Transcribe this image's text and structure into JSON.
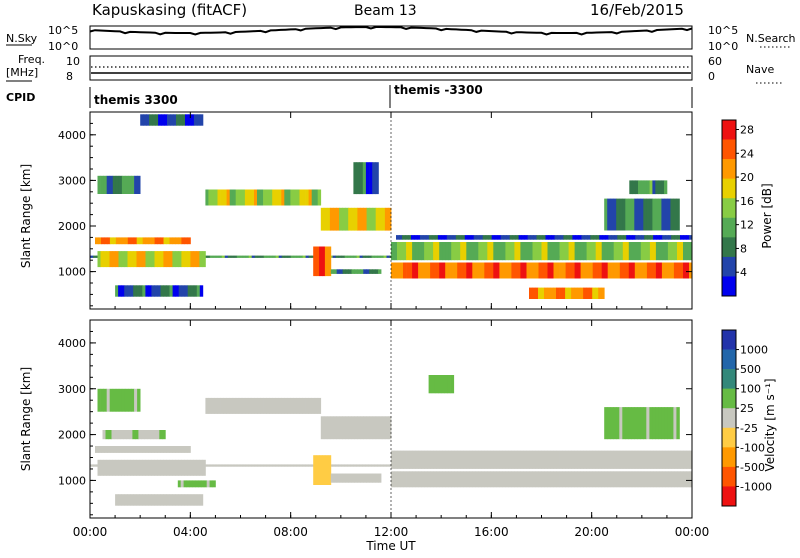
{
  "header": {
    "station": "Kapuskasing (fitACF)",
    "beam": "Beam 13",
    "date": "16/Feb/2015"
  },
  "top_panels": {
    "nsky_label": "N.Sky",
    "nsearch_label": "N.Search",
    "nsky_ticks": [
      "10^5",
      "10^0"
    ],
    "nsearch_ticks": [
      "10^5",
      "10^0"
    ],
    "freq_label": "Freq.",
    "freq_unit": "[MHz]",
    "freq_ticks": [
      "10",
      "8"
    ],
    "nave_label": "Nave",
    "nave_ticks": [
      "60",
      "0"
    ],
    "cpid_label": "CPID",
    "cpid_segments": [
      "themis 3300",
      "themis -3300"
    ]
  },
  "chart_data": [
    {
      "type": "heatmap",
      "name": "power",
      "ylabel": "Slant Range [km]",
      "xlabel": "",
      "xlim": [
        0,
        24
      ],
      "ylim": [
        180,
        4500
      ],
      "y_ticks": [
        "1000",
        "2000",
        "3000",
        "4000"
      ],
      "x_ticks": [
        "00:00",
        "04:00",
        "08:00",
        "12:00",
        "16:00",
        "20:00",
        "00:00"
      ],
      "colorbar_label": "Power [dB]",
      "colorbar_ticks": [
        "4",
        "8",
        "12",
        "16",
        "20",
        "24",
        "28"
      ],
      "colorbar_range": [
        0,
        30
      ],
      "colors": [
        "#0000ee",
        "#2244aa",
        "#33774a",
        "#55aa55",
        "#88cc44",
        "#e8d000",
        "#ff9900",
        "#ff5500",
        "#ee1111"
      ],
      "regions": [
        {
          "t": [
            0,
            24
          ],
          "r": [
            1300,
            1350
          ],
          "value": 10
        },
        {
          "t": [
            0.3,
            4.6
          ],
          "r": [
            1100,
            1450
          ],
          "value": 18
        },
        {
          "t": [
            0.2,
            4.0
          ],
          "r": [
            1600,
            1750
          ],
          "value": 22
        },
        {
          "t": [
            0.3,
            2.0
          ],
          "r": [
            2700,
            3100
          ],
          "value": 9
        },
        {
          "t": [
            1.0,
            4.5
          ],
          "r": [
            450,
            700
          ],
          "value": 6
        },
        {
          "t": [
            4.6,
            9.2
          ],
          "r": [
            2450,
            2800
          ],
          "value": 16
        },
        {
          "t": [
            9.2,
            12.0
          ],
          "r": [
            1900,
            2400
          ],
          "value": 18
        },
        {
          "t": [
            8.9,
            9.6
          ],
          "r": [
            900,
            1550
          ],
          "value": 24
        },
        {
          "t": [
            9.6,
            11.6
          ],
          "r": [
            950,
            1050
          ],
          "value": 9
        },
        {
          "t": [
            12.0,
            24.0
          ],
          "r": [
            850,
            1200
          ],
          "value": 24
        },
        {
          "t": [
            12.0,
            24.0
          ],
          "r": [
            1250,
            1650
          ],
          "value": 14
        },
        {
          "t": [
            12.2,
            24.0
          ],
          "r": [
            1700,
            1800
          ],
          "value": 5
        },
        {
          "t": [
            17.5,
            20.5
          ],
          "r": [
            400,
            650
          ],
          "value": 22
        },
        {
          "t": [
            20.5,
            23.5
          ],
          "r": [
            1900,
            2600
          ],
          "value": 8
        },
        {
          "t": [
            21.5,
            23.0
          ],
          "r": [
            2700,
            3000
          ],
          "value": 10
        },
        {
          "t": [
            2.0,
            4.5
          ],
          "r": [
            4200,
            4450
          ],
          "value": 5
        },
        {
          "t": [
            10.5,
            11.5
          ],
          "r": [
            2700,
            3400
          ],
          "value": 6
        }
      ]
    },
    {
      "type": "heatmap",
      "name": "velocity",
      "ylabel": "Slant Range [km]",
      "xlabel": "Time UT",
      "xlim": [
        0,
        24
      ],
      "ylim": [
        180,
        4500
      ],
      "y_ticks": [
        "1000",
        "2000",
        "3000",
        "4000"
      ],
      "x_ticks": [
        "00:00",
        "04:00",
        "08:00",
        "12:00",
        "16:00",
        "20:00",
        "00:00"
      ],
      "colorbar_label": "Velocity [m s⁻¹]",
      "colorbar_ticks": [
        "1000",
        "500",
        "100",
        "25",
        "-25",
        "-100",
        "-500",
        "-1000"
      ],
      "colorbar_range": [
        -1200,
        1200
      ],
      "colors": [
        "#2233aa",
        "#2266aa",
        "#33887a",
        "#66bb44",
        "#c8c8c0",
        "#ffcc44",
        "#ff9900",
        "#ff5500",
        "#ee1111"
      ],
      "regions": [
        {
          "t": [
            0,
            24
          ],
          "r": [
            1300,
            1350
          ],
          "value": 0
        },
        {
          "t": [
            0.3,
            4.6
          ],
          "r": [
            1100,
            1450
          ],
          "value": 0
        },
        {
          "t": [
            0.2,
            4.0
          ],
          "r": [
            1600,
            1750
          ],
          "value": 0
        },
        {
          "t": [
            0.3,
            2.0
          ],
          "r": [
            2500,
            3000
          ],
          "value": 150
        },
        {
          "t": [
            1.0,
            4.5
          ],
          "r": [
            450,
            700
          ],
          "value": 0
        },
        {
          "t": [
            4.6,
            9.2
          ],
          "r": [
            2450,
            2800
          ],
          "value": 0
        },
        {
          "t": [
            9.2,
            12.0
          ],
          "r": [
            1900,
            2400
          ],
          "value": 0
        },
        {
          "t": [
            8.9,
            9.6
          ],
          "r": [
            900,
            1550
          ],
          "value": -300
        },
        {
          "t": [
            9.6,
            11.6
          ],
          "r": [
            950,
            1150
          ],
          "value": -60
        },
        {
          "t": [
            12.0,
            24.0
          ],
          "r": [
            850,
            1200
          ],
          "value": 0
        },
        {
          "t": [
            12.0,
            24.0
          ],
          "r": [
            1250,
            1650
          ],
          "value": 0
        },
        {
          "t": [
            20.5,
            23.5
          ],
          "r": [
            1900,
            2600
          ],
          "value": 150
        },
        {
          "t": [
            0.5,
            3.0
          ],
          "r": [
            1900,
            2100
          ],
          "value": 120
        },
        {
          "t": [
            3.5,
            5.0
          ],
          "r": [
            850,
            1000
          ],
          "value": 150
        },
        {
          "t": [
            13.5,
            14.5
          ],
          "r": [
            2900,
            3300
          ],
          "value": 200
        }
      ]
    }
  ]
}
